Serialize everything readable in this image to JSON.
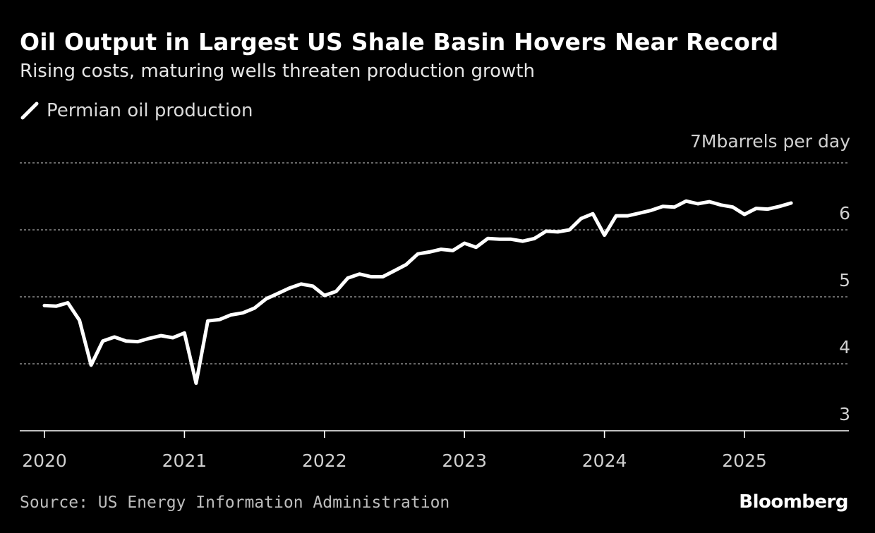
{
  "header": {
    "title": "Oil Output in Largest US Shale Basin Hovers Near Record",
    "subtitle": "Rising costs, maturing wells threaten production growth"
  },
  "footer": {
    "source": "Source: US Energy Information Administration",
    "brand": "Bloomberg"
  },
  "colors": {
    "background": "#000000",
    "line": "#ffffff",
    "grid": "#8a8a8a",
    "axis": "#ffffff",
    "text": "#d0d0d0"
  },
  "chart_data": {
    "type": "line",
    "title": "Oil Output in Largest US Shale Basin Hovers Near Record",
    "subtitle": "Rising costs, maturing wells threaten production growth",
    "unit_label": "7Mbarrels per day",
    "xlabel": "",
    "ylabel": "Mbarrels per day",
    "ylim": [
      3,
      7
    ],
    "y_ticks": [
      3,
      4,
      5,
      6
    ],
    "y_gridlines": [
      4,
      5,
      6,
      7
    ],
    "x_ticks": [
      "2020",
      "2021",
      "2022",
      "2023",
      "2024",
      "2025"
    ],
    "x_range": [
      "2020-01",
      "2025-09"
    ],
    "legend": {
      "position": "top-left",
      "entries": [
        "Permian oil production"
      ]
    },
    "series": [
      {
        "name": "Permian oil production",
        "x": [
          "2020-01",
          "2020-02",
          "2020-03",
          "2020-04",
          "2020-05",
          "2020-06",
          "2020-07",
          "2020-08",
          "2020-09",
          "2020-10",
          "2020-11",
          "2020-12",
          "2021-01",
          "2021-02",
          "2021-03",
          "2021-04",
          "2021-05",
          "2021-06",
          "2021-07",
          "2021-08",
          "2021-09",
          "2021-10",
          "2021-11",
          "2021-12",
          "2022-01",
          "2022-02",
          "2022-03",
          "2022-04",
          "2022-05",
          "2022-06",
          "2022-07",
          "2022-08",
          "2022-09",
          "2022-10",
          "2022-11",
          "2022-12",
          "2023-01",
          "2023-02",
          "2023-03",
          "2023-04",
          "2023-05",
          "2023-06",
          "2023-07",
          "2023-08",
          "2023-09",
          "2023-10",
          "2023-11",
          "2023-12",
          "2024-01",
          "2024-02",
          "2024-03",
          "2024-04",
          "2024-05",
          "2024-06",
          "2024-07",
          "2024-08",
          "2024-09",
          "2024-10",
          "2024-11",
          "2024-12",
          "2025-01",
          "2025-02",
          "2025-03",
          "2025-04",
          "2025-05"
        ],
        "values": [
          4.87,
          4.86,
          4.91,
          4.65,
          3.98,
          4.34,
          4.4,
          4.34,
          4.33,
          4.38,
          4.42,
          4.39,
          4.46,
          3.71,
          4.64,
          4.66,
          4.73,
          4.76,
          4.83,
          4.97,
          5.05,
          5.13,
          5.19,
          5.16,
          5.02,
          5.08,
          5.28,
          5.34,
          5.3,
          5.3,
          5.39,
          5.48,
          5.64,
          5.67,
          5.71,
          5.69,
          5.8,
          5.74,
          5.87,
          5.86,
          5.86,
          5.83,
          5.87,
          5.98,
          5.97,
          6.0,
          6.17,
          6.24,
          5.92,
          6.21,
          6.21,
          6.25,
          6.29,
          6.35,
          6.34,
          6.43,
          6.39,
          6.42,
          6.37,
          6.34,
          6.23,
          6.32,
          6.31,
          6.35,
          6.4
        ]
      }
    ]
  }
}
